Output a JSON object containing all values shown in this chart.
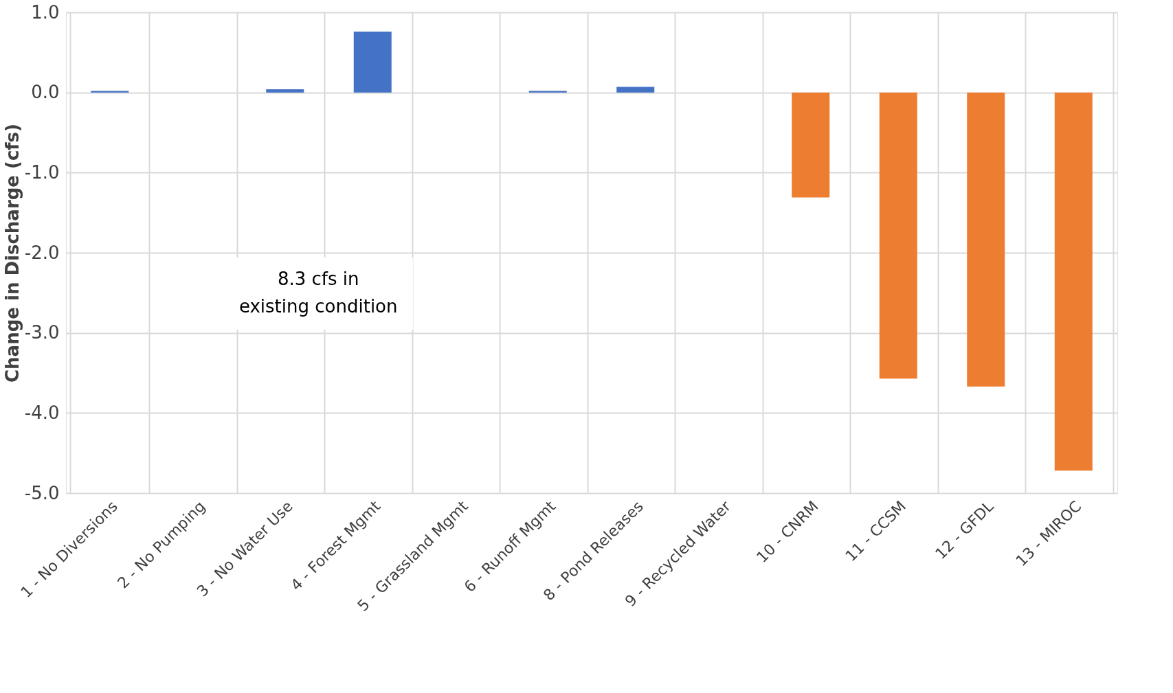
{
  "chart_data": {
    "type": "bar",
    "ylabel": "Change in Discharge (cfs)",
    "categories": [
      "1 - No Diversions",
      "2 - No Pumping",
      "3 - No Water Use",
      "4 - Forest Mgmt",
      "5 - Grassland Mgmt",
      "6 - Runoff Mgmt",
      "8 - Pond Releases",
      "9 - Recycled Water",
      "10 - CNRM",
      "11 - CCSM",
      "12 - GFDL",
      "13 - MIROC"
    ],
    "values": [
      0.02,
      0,
      0.04,
      0.76,
      0,
      0.02,
      0.07,
      0,
      -1.31,
      -3.57,
      -3.67,
      -4.72
    ],
    "colors": [
      "#4472c4",
      "#4472c4",
      "#4472c4",
      "#4472c4",
      "#4472c4",
      "#4472c4",
      "#4472c4",
      "#4472c4",
      "#ed7d31",
      "#ed7d31",
      "#ed7d31",
      "#ed7d31"
    ],
    "ylim": [
      -5,
      1
    ],
    "yticks": [
      {
        "value": -5,
        "label": "-5.0"
      },
      {
        "value": -4,
        "label": "-4.0"
      },
      {
        "value": -3,
        "label": "-3.0"
      },
      {
        "value": -2,
        "label": "-2.0"
      },
      {
        "value": -1,
        "label": "-1.0"
      },
      {
        "value": 0,
        "label": "0.0"
      },
      {
        "value": 1,
        "label": "1.0"
      }
    ],
    "grid": true,
    "annotations": [
      "8.3 cfs in\nexisting condition"
    ]
  }
}
